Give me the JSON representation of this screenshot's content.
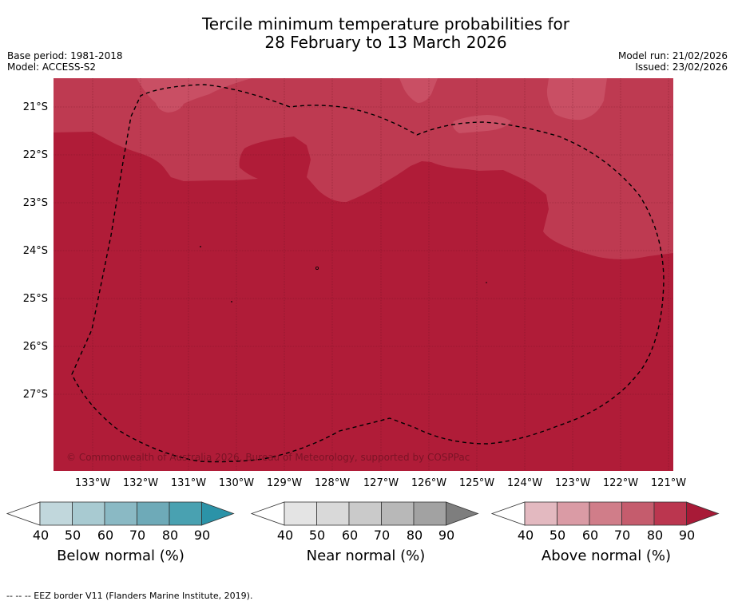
{
  "title": {
    "line1": "Tercile minimum temperature probabilities for",
    "line2": "28 February to 13 March 2026"
  },
  "meta_left": {
    "base_period": "Base period: 1981-2018",
    "model": "Model: ACCESS-S2"
  },
  "meta_right": {
    "model_run": "Model run: 21/02/2026",
    "issued": "Issued: 23/02/2026"
  },
  "map": {
    "latitude_labels": [
      "21°S",
      "22°S",
      "23°S",
      "24°S",
      "25°S",
      "26°S",
      "27°S"
    ],
    "longitude_labels": [
      "133°W",
      "132°W",
      "131°W",
      "130°W",
      "129°W",
      "128°W",
      "127°W",
      "126°W",
      "125°W",
      "124°W",
      "123°W",
      "122°W",
      "121°W"
    ],
    "credit": "© Commonwealth of Australia 2026, Bureau of Meteorology, supported by COSPPac",
    "colors": {
      "above_80_90": "#b01c38",
      "above_70_80": "#be3a51",
      "above_60_70": "#c94f64",
      "eez_border": "#000000"
    }
  },
  "legends": [
    {
      "title": "Below normal (%)",
      "ticks": [
        "40",
        "50",
        "60",
        "70",
        "80",
        "90"
      ],
      "colors": [
        "#ffffff",
        "#c1d7dc",
        "#a8cad1",
        "#8ab9c4",
        "#6eaab8",
        "#49a1b1",
        "#2b93a8"
      ]
    },
    {
      "title": "Near normal (%)",
      "ticks": [
        "40",
        "50",
        "60",
        "70",
        "80",
        "90"
      ],
      "colors": [
        "#ffffff",
        "#e4e4e4",
        "#d9d9d9",
        "#cacaca",
        "#b8b8b8",
        "#a2a2a2",
        "#7e7e7e"
      ]
    },
    {
      "title": "Above normal (%)",
      "ticks": [
        "40",
        "50",
        "60",
        "70",
        "80",
        "90"
      ],
      "colors": [
        "#ffffff",
        "#e3b9c0",
        "#da9ba5",
        "#d07d89",
        "#c55c6d",
        "#bb364f",
        "#a81a37"
      ]
    }
  ],
  "footer": "-- -- -- EEZ border V11 (Flanders Marine Institute, 2019)."
}
